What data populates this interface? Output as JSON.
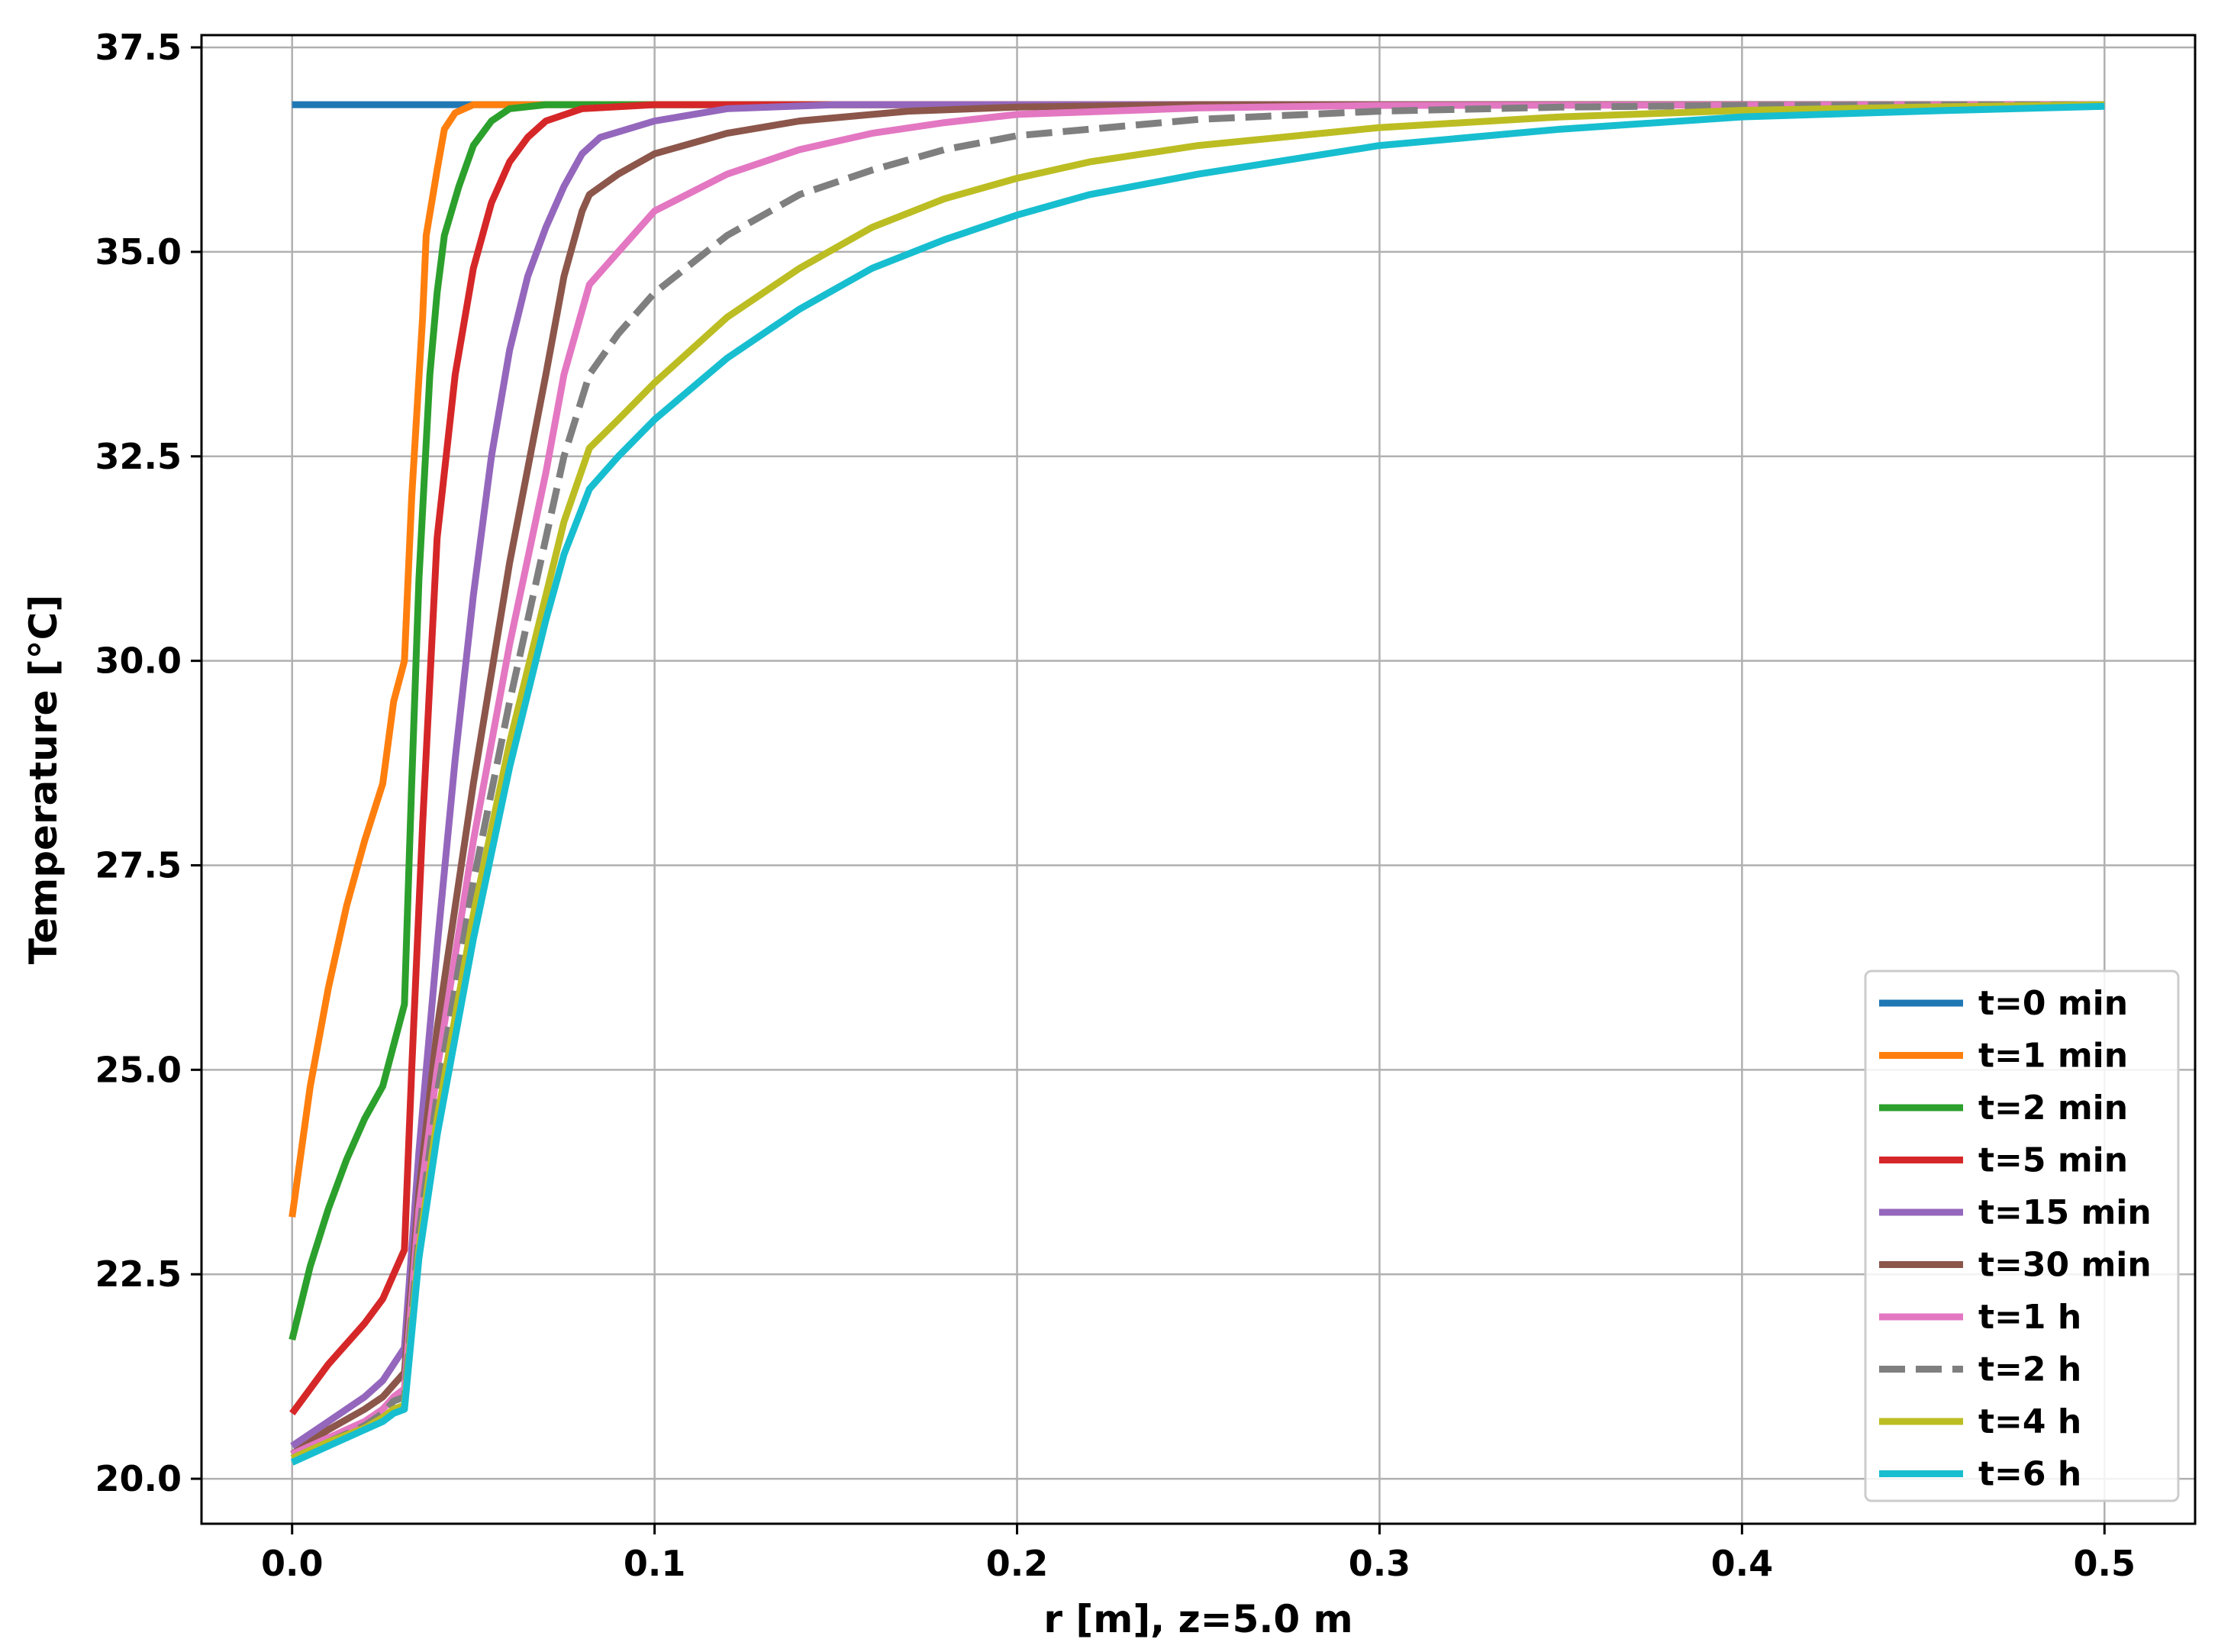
{
  "chart_data": {
    "type": "line",
    "title": "",
    "xlabel": "r [m], z=5.0 m",
    "ylabel": "Temperature [°C]",
    "xlim": [
      -0.025,
      0.525
    ],
    "ylim": [
      19.45,
      37.65
    ],
    "xticks": [
      0.0,
      0.1,
      0.2,
      0.3,
      0.4,
      0.5
    ],
    "xtick_labels": [
      "0.0",
      "0.1",
      "0.2",
      "0.3",
      "0.4",
      "0.5"
    ],
    "yticks": [
      20.0,
      22.5,
      25.0,
      27.5,
      30.0,
      32.5,
      35.0,
      37.5
    ],
    "ytick_labels": [
      "20.0",
      "22.5",
      "25.0",
      "27.5",
      "30.0",
      "32.5",
      "35.0",
      "37.5"
    ],
    "grid": true,
    "legend_position": "lower-right",
    "series": [
      {
        "name": "t=0 min",
        "color": "#1f77b4",
        "dash": false,
        "points": [
          [
            0.0,
            36.8
          ],
          [
            0.5,
            36.8
          ]
        ]
      },
      {
        "name": "t=1 min",
        "color": "#ff7f0e",
        "dash": false,
        "points": [
          [
            0.0,
            23.2
          ],
          [
            0.005,
            24.8
          ],
          [
            0.01,
            26.0
          ],
          [
            0.015,
            27.0
          ],
          [
            0.02,
            27.8
          ],
          [
            0.025,
            28.5
          ],
          [
            0.028,
            29.5
          ],
          [
            0.031,
            30.0
          ],
          [
            0.033,
            32.0
          ],
          [
            0.036,
            34.2
          ],
          [
            0.037,
            35.2
          ],
          [
            0.04,
            36.0
          ],
          [
            0.042,
            36.5
          ],
          [
            0.045,
            36.7
          ],
          [
            0.05,
            36.8
          ],
          [
            0.5,
            36.8
          ]
        ]
      },
      {
        "name": "t=2 min",
        "color": "#2ca02c",
        "dash": false,
        "points": [
          [
            0.0,
            21.7
          ],
          [
            0.005,
            22.6
          ],
          [
            0.01,
            23.3
          ],
          [
            0.015,
            23.9
          ],
          [
            0.02,
            24.4
          ],
          [
            0.025,
            24.8
          ],
          [
            0.028,
            25.3
          ],
          [
            0.031,
            25.8
          ],
          [
            0.033,
            28.5
          ],
          [
            0.035,
            31.0
          ],
          [
            0.038,
            33.5
          ],
          [
            0.04,
            34.5
          ],
          [
            0.042,
            35.2
          ],
          [
            0.046,
            35.8
          ],
          [
            0.05,
            36.3
          ],
          [
            0.055,
            36.6
          ],
          [
            0.06,
            36.75
          ],
          [
            0.07,
            36.8
          ],
          [
            0.5,
            36.8
          ]
        ]
      },
      {
        "name": "t=5 min",
        "color": "#d62728",
        "dash": false,
        "points": [
          [
            0.0,
            20.8
          ],
          [
            0.01,
            21.4
          ],
          [
            0.02,
            21.9
          ],
          [
            0.025,
            22.2
          ],
          [
            0.028,
            22.5
          ],
          [
            0.031,
            22.8
          ],
          [
            0.033,
            25.0
          ],
          [
            0.036,
            28.0
          ],
          [
            0.04,
            31.5
          ],
          [
            0.045,
            33.5
          ],
          [
            0.05,
            34.8
          ],
          [
            0.055,
            35.6
          ],
          [
            0.06,
            36.1
          ],
          [
            0.065,
            36.4
          ],
          [
            0.07,
            36.6
          ],
          [
            0.08,
            36.75
          ],
          [
            0.1,
            36.8
          ],
          [
            0.5,
            36.8
          ]
        ]
      },
      {
        "name": "t=15 min",
        "color": "#9467bd",
        "dash": false,
        "points": [
          [
            0.0,
            20.4
          ],
          [
            0.01,
            20.7
          ],
          [
            0.02,
            21.0
          ],
          [
            0.025,
            21.2
          ],
          [
            0.028,
            21.4
          ],
          [
            0.031,
            21.6
          ],
          [
            0.035,
            24.0
          ],
          [
            0.04,
            26.5
          ],
          [
            0.045,
            28.8
          ],
          [
            0.05,
            30.8
          ],
          [
            0.055,
            32.5
          ],
          [
            0.06,
            33.8
          ],
          [
            0.065,
            34.7
          ],
          [
            0.07,
            35.3
          ],
          [
            0.075,
            35.8
          ],
          [
            0.08,
            36.2
          ],
          [
            0.085,
            36.4
          ],
          [
            0.1,
            36.6
          ],
          [
            0.12,
            36.75
          ],
          [
            0.15,
            36.8
          ],
          [
            0.5,
            36.8
          ]
        ]
      },
      {
        "name": "t=30 min",
        "color": "#8c564b",
        "dash": false,
        "points": [
          [
            0.0,
            20.3
          ],
          [
            0.01,
            20.6
          ],
          [
            0.02,
            20.85
          ],
          [
            0.025,
            21.0
          ],
          [
            0.028,
            21.15
          ],
          [
            0.031,
            21.3
          ],
          [
            0.035,
            23.5
          ],
          [
            0.04,
            25.5
          ],
          [
            0.05,
            28.5
          ],
          [
            0.06,
            31.2
          ],
          [
            0.07,
            33.5
          ],
          [
            0.075,
            34.7
          ],
          [
            0.08,
            35.5
          ],
          [
            0.082,
            35.7
          ],
          [
            0.09,
            35.95
          ],
          [
            0.1,
            36.2
          ],
          [
            0.12,
            36.45
          ],
          [
            0.14,
            36.6
          ],
          [
            0.17,
            36.72
          ],
          [
            0.2,
            36.77
          ],
          [
            0.25,
            36.8
          ],
          [
            0.5,
            36.8
          ]
        ]
      },
      {
        "name": "t=1 h",
        "color": "#e377c2",
        "dash": false,
        "points": [
          [
            0.0,
            20.3
          ],
          [
            0.01,
            20.5
          ],
          [
            0.02,
            20.7
          ],
          [
            0.025,
            20.85
          ],
          [
            0.028,
            21.0
          ],
          [
            0.031,
            21.1
          ],
          [
            0.035,
            23.3
          ],
          [
            0.04,
            25.0
          ],
          [
            0.05,
            27.8
          ],
          [
            0.06,
            30.2
          ],
          [
            0.07,
            32.3
          ],
          [
            0.075,
            33.5
          ],
          [
            0.082,
            34.6
          ],
          [
            0.09,
            35.0
          ],
          [
            0.1,
            35.5
          ],
          [
            0.12,
            35.95
          ],
          [
            0.14,
            36.25
          ],
          [
            0.16,
            36.45
          ],
          [
            0.18,
            36.58
          ],
          [
            0.2,
            36.68
          ],
          [
            0.25,
            36.76
          ],
          [
            0.3,
            36.79
          ],
          [
            0.5,
            36.8
          ]
        ]
      },
      {
        "name": "t=2 h",
        "color": "#7f7f7f",
        "dash": true,
        "points": [
          [
            0.0,
            20.25
          ],
          [
            0.01,
            20.45
          ],
          [
            0.02,
            20.65
          ],
          [
            0.025,
            20.8
          ],
          [
            0.028,
            20.95
          ],
          [
            0.031,
            21.0
          ],
          [
            0.035,
            23.0
          ],
          [
            0.04,
            24.7
          ],
          [
            0.05,
            27.3
          ],
          [
            0.06,
            29.5
          ],
          [
            0.07,
            31.5
          ],
          [
            0.075,
            32.5
          ],
          [
            0.082,
            33.5
          ],
          [
            0.09,
            34.0
          ],
          [
            0.1,
            34.5
          ],
          [
            0.12,
            35.2
          ],
          [
            0.14,
            35.7
          ],
          [
            0.16,
            36.0
          ],
          [
            0.18,
            36.25
          ],
          [
            0.2,
            36.42
          ],
          [
            0.25,
            36.62
          ],
          [
            0.3,
            36.72
          ],
          [
            0.35,
            36.77
          ],
          [
            0.4,
            36.79
          ],
          [
            0.5,
            36.8
          ]
        ]
      },
      {
        "name": "t=4 h",
        "color": "#bcbd22",
        "dash": false,
        "points": [
          [
            0.0,
            20.25
          ],
          [
            0.01,
            20.45
          ],
          [
            0.02,
            20.62
          ],
          [
            0.025,
            20.75
          ],
          [
            0.028,
            20.85
          ],
          [
            0.031,
            20.9
          ],
          [
            0.035,
            22.8
          ],
          [
            0.04,
            24.4
          ],
          [
            0.05,
            26.9
          ],
          [
            0.06,
            29.0
          ],
          [
            0.07,
            30.8
          ],
          [
            0.075,
            31.7
          ],
          [
            0.082,
            32.6
          ],
          [
            0.09,
            32.95
          ],
          [
            0.1,
            33.4
          ],
          [
            0.12,
            34.2
          ],
          [
            0.14,
            34.8
          ],
          [
            0.16,
            35.3
          ],
          [
            0.18,
            35.65
          ],
          [
            0.2,
            35.9
          ],
          [
            0.22,
            36.1
          ],
          [
            0.25,
            36.3
          ],
          [
            0.3,
            36.52
          ],
          [
            0.35,
            36.65
          ],
          [
            0.4,
            36.73
          ],
          [
            0.45,
            36.77
          ],
          [
            0.5,
            36.8
          ]
        ]
      },
      {
        "name": "t=6 h",
        "color": "#17becf",
        "dash": false,
        "points": [
          [
            0.0,
            20.2
          ],
          [
            0.01,
            20.4
          ],
          [
            0.02,
            20.6
          ],
          [
            0.025,
            20.7
          ],
          [
            0.028,
            20.8
          ],
          [
            0.031,
            20.85
          ],
          [
            0.035,
            22.7
          ],
          [
            0.04,
            24.2
          ],
          [
            0.05,
            26.6
          ],
          [
            0.06,
            28.7
          ],
          [
            0.07,
            30.5
          ],
          [
            0.075,
            31.3
          ],
          [
            0.082,
            32.1
          ],
          [
            0.09,
            32.5
          ],
          [
            0.1,
            32.95
          ],
          [
            0.12,
            33.7
          ],
          [
            0.14,
            34.3
          ],
          [
            0.16,
            34.8
          ],
          [
            0.18,
            35.15
          ],
          [
            0.2,
            35.45
          ],
          [
            0.22,
            35.7
          ],
          [
            0.25,
            35.95
          ],
          [
            0.3,
            36.3
          ],
          [
            0.35,
            36.5
          ],
          [
            0.4,
            36.65
          ],
          [
            0.45,
            36.72
          ],
          [
            0.5,
            36.78
          ]
        ]
      }
    ]
  }
}
